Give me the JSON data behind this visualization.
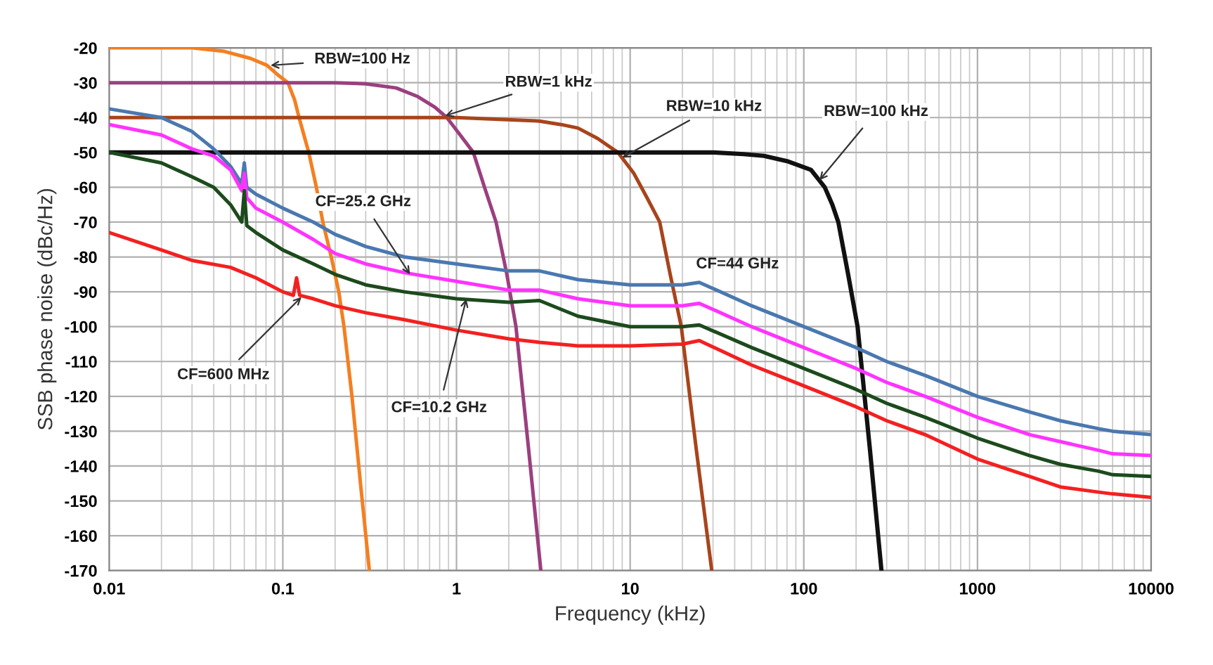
{
  "chart_data": {
    "type": "line",
    "xlabel": "Frequency (kHz)",
    "ylabel": "SSB phase noise (dBc/Hz)",
    "log": "x",
    "xlim": [
      0.01,
      10000
    ],
    "xticks": [
      0.01,
      0.1,
      1,
      10,
      100,
      1000,
      10000
    ],
    "ylim": [
      -170,
      -20
    ],
    "yticks": [
      -170,
      -160,
      -150,
      -140,
      -130,
      -120,
      -110,
      -100,
      -90,
      -80,
      -70,
      -60,
      -50,
      -40,
      -30,
      -20
    ],
    "grid": true,
    "legend": false,
    "marker": "none",
    "line_style": "solid",
    "annotations": [
      {
        "text": "RBW=100 Hz",
        "x": 0.085,
        "y": -25
      },
      {
        "text": "RBW=1 kHz",
        "x": 0.86,
        "y": -39.5
      },
      {
        "text": "RBW=10 kHz",
        "x": 9.0,
        "y": -51.5
      },
      {
        "text": "RBW=100 kHz",
        "x": 123,
        "y": -58
      },
      {
        "text": "CF=25.2 GHz",
        "x": 0.54,
        "y": -85
      },
      {
        "text": "CF=600 MHz",
        "x": 0.128,
        "y": -91.5
      },
      {
        "text": "CF=10.2 GHz",
        "x": 1.14,
        "y": -92
      }
    ],
    "series": [
      {
        "color": "#f47f20",
        "x": [
          0.01,
          0.03,
          0.046,
          0.065,
          0.081,
          0.095,
          0.107,
          0.117,
          0.124,
          0.141,
          0.156,
          0.17,
          0.19,
          0.21,
          0.225,
          0.25,
          0.28,
          0.315
        ],
        "values": [
          -20,
          -20,
          -21,
          -23,
          -25,
          -28,
          -30,
          -35,
          -40,
          -50,
          -60,
          -70,
          -80,
          -90,
          -100,
          -120,
          -145,
          -170
        ]
      },
      {
        "color": "#9b3f7f",
        "x": [
          0.01,
          0.2,
          0.3,
          0.45,
          0.6,
          0.75,
          0.88,
          1.05,
          1.25,
          1.45,
          1.69,
          1.95,
          2.2,
          2.6,
          3.06
        ],
        "values": [
          -30,
          -30,
          -30.3,
          -31.5,
          -34,
          -37,
          -40,
          -45,
          -50,
          -60,
          -70,
          -85,
          -100,
          -135,
          -170
        ]
      },
      {
        "color": "#a8441b",
        "x": [
          0.01,
          1,
          3,
          4,
          5,
          6.5,
          8.5,
          10.5,
          12.5,
          14.8,
          17,
          19.7,
          24,
          29.5
        ],
        "values": [
          -40,
          -40,
          -41,
          -42,
          -43,
          -46,
          -50,
          -56,
          -63,
          -70,
          -85,
          -100,
          -135,
          -170
        ]
      },
      {
        "color": "#111111",
        "x": [
          0.01,
          30,
          45,
          59,
          80,
          110,
          132,
          146,
          158,
          180,
          204,
          240,
          280
        ],
        "values": [
          -50,
          -50,
          -50.5,
          -51,
          -52.5,
          -55,
          -60,
          -65,
          -70,
          -85,
          -100,
          -135,
          -170
        ]
      },
      {
        "name": "CF=44 GHz",
        "color": "#4a78b0",
        "x": [
          0.01,
          0.02,
          0.03,
          0.04,
          0.05,
          0.058,
          0.06,
          0.062,
          0.07,
          0.1,
          0.15,
          0.2,
          0.3,
          0.5,
          1,
          2,
          3,
          5,
          10,
          20,
          25,
          50,
          100,
          200,
          300,
          500,
          1000,
          2000,
          3000,
          5000,
          6000,
          10000
        ],
        "values": [
          -37.5,
          -40,
          -44,
          -49,
          -54,
          -59,
          -53,
          -60,
          -62,
          -66,
          -70,
          -73.5,
          -77,
          -80,
          -82,
          -84,
          -84,
          -86.5,
          -88,
          -88,
          -87.3,
          -94,
          -100,
          -106,
          -110,
          -114,
          -120,
          -124.5,
          -127,
          -129.3,
          -130,
          -131
        ]
      },
      {
        "color": "#ff33ff",
        "x": [
          0.01,
          0.02,
          0.03,
          0.04,
          0.05,
          0.058,
          0.06,
          0.062,
          0.07,
          0.1,
          0.15,
          0.2,
          0.3,
          0.5,
          1,
          2,
          3,
          5,
          10,
          20,
          25,
          50,
          100,
          200,
          300,
          500,
          1000,
          2000,
          3000,
          5000,
          6000,
          10000
        ],
        "values": [
          -42,
          -45,
          -49,
          -51,
          -55,
          -61,
          -56,
          -63,
          -66,
          -70,
          -75,
          -79,
          -82,
          -84.5,
          -87,
          -89.5,
          -89.5,
          -92,
          -94,
          -94,
          -93.3,
          -100,
          -106,
          -112,
          -116,
          -120,
          -126,
          -131,
          -133,
          -135.5,
          -136.5,
          -137
        ]
      },
      {
        "color": "#1c4a1c",
        "x": [
          0.01,
          0.02,
          0.03,
          0.04,
          0.05,
          0.058,
          0.06,
          0.062,
          0.07,
          0.1,
          0.15,
          0.2,
          0.3,
          0.5,
          1,
          2,
          3,
          5,
          10,
          20,
          25,
          50,
          100,
          200,
          300,
          500,
          1000,
          2000,
          3000,
          5000,
          6000,
          10000
        ],
        "values": [
          -50,
          -53,
          -57,
          -60,
          -65,
          -70,
          -61,
          -71,
          -73,
          -78,
          -82,
          -85,
          -88,
          -90,
          -92,
          -93,
          -92.5,
          -97,
          -100,
          -100,
          -99.5,
          -106,
          -112,
          -118,
          -122,
          -126,
          -132,
          -137,
          -139.5,
          -141.5,
          -142.5,
          -143
        ]
      },
      {
        "color": "#f42020",
        "x": [
          0.01,
          0.02,
          0.03,
          0.05,
          0.07,
          0.1,
          0.115,
          0.12,
          0.125,
          0.15,
          0.2,
          0.3,
          0.5,
          1,
          2,
          3,
          5,
          10,
          20,
          25,
          50,
          100,
          200,
          300,
          500,
          1000,
          2000,
          3000,
          5000,
          6000,
          10000
        ],
        "values": [
          -73,
          -78,
          -81,
          -83,
          -86,
          -90,
          -91,
          -86,
          -91,
          -92,
          -94,
          -96,
          -98,
          -101,
          -103.5,
          -104.5,
          -105.5,
          -105.5,
          -105,
          -104,
          -111,
          -117,
          -123,
          -127,
          -131,
          -138,
          -143,
          -146,
          -147.5,
          -148,
          -149
        ]
      }
    ]
  }
}
